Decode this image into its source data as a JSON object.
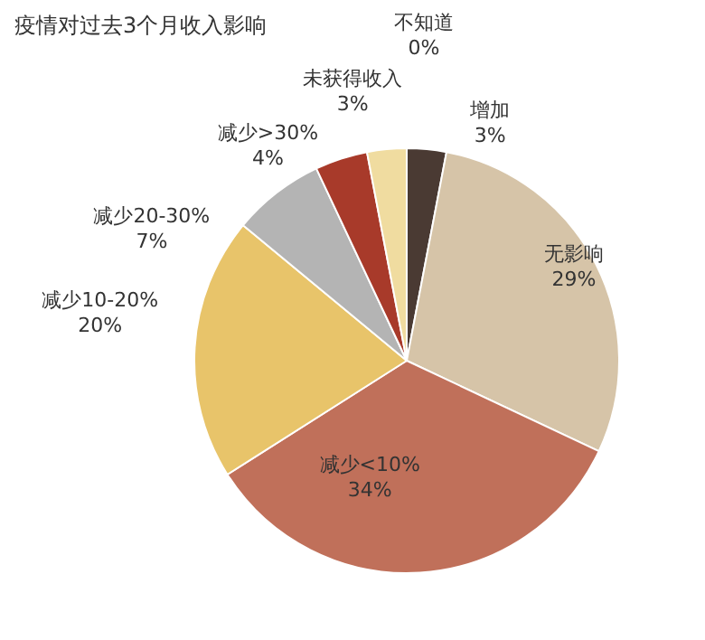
{
  "chart_data": {
    "type": "pie",
    "title": "疫情对过去3个月收入影响",
    "categories": [
      "不知道",
      "增加",
      "无影响",
      "减少<10%",
      "减少10-20%",
      "减少20-30%",
      "减少>30%",
      "未获得收入"
    ],
    "values": [
      0,
      3,
      29,
      34,
      20,
      7,
      4,
      3
    ],
    "colors": [
      "#8a6a50",
      "#4a3a33",
      "#d6c4a8",
      "#c0705a",
      "#e8c46a",
      "#b4b4b4",
      "#a83a2a",
      "#f0dca0"
    ],
    "value_labels": [
      "0%",
      "3%",
      "29%",
      "34%",
      "20%",
      "7%",
      "4%",
      "3%"
    ],
    "legend": false
  }
}
